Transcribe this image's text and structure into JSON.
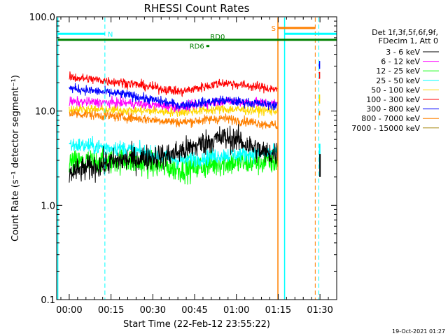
{
  "chart_data": {
    "type": "line",
    "title": "RHESSI Count Rates",
    "xlabel": "Start Time (22-Feb-12 23:55:22)",
    "ylabel": "Count Rate (s⁻¹ detector segment⁻¹)",
    "y_scale": "log",
    "ylim": [
      0.1,
      100.0
    ],
    "y_tick_labels": [
      "0.1",
      "1.0",
      "10.0",
      "100.0"
    ],
    "xlim_minutes": [
      -4.5,
      96
    ],
    "x_tick_labels": [
      "00:00",
      "00:15",
      "00:30",
      "00:45",
      "01:00",
      "01:15",
      "01:30"
    ],
    "legend_placement": "right",
    "legend_header": [
      "Det 1f,3f,5f,6f,9f,",
      "FDecim 1, Att 0"
    ],
    "series": [
      {
        "name": "3 - 6 keV",
        "color": "#000000",
        "data_end_min": 74.8,
        "gaps": [
          [
            0,
            4
          ]
        ],
        "segments": [
          [
            0,
            2.2
          ],
          [
            18,
            3.0
          ],
          [
            36,
            3.4
          ],
          [
            45,
            4.2
          ],
          [
            50,
            4.8
          ],
          [
            55,
            5.2
          ],
          [
            60,
            5.0
          ],
          [
            70,
            3.6
          ],
          [
            74.8,
            3.5
          ]
        ]
      },
      {
        "name": "6 - 12 keV",
        "color": "#ff00ff",
        "data_end_min": 74.8,
        "segments": [
          [
            0,
            12.5
          ],
          [
            20,
            12.2
          ],
          [
            40,
            11.0
          ],
          [
            55,
            12.8
          ],
          [
            74.8,
            12.0
          ]
        ]
      },
      {
        "name": "12 - 25 keV",
        "color": "#00ff00",
        "data_end_min": 74.8,
        "segments": [
          [
            0,
            2.8
          ],
          [
            20,
            3.0
          ],
          [
            40,
            2.4
          ],
          [
            55,
            2.8
          ],
          [
            74.8,
            2.9
          ]
        ]
      },
      {
        "name": "25 - 50 keV",
        "color": "#00ffff",
        "data_end_min": 74.8,
        "segments": [
          [
            0,
            4.4
          ],
          [
            20,
            4.0
          ],
          [
            40,
            3.0
          ],
          [
            55,
            3.4
          ],
          [
            74.8,
            3.6
          ]
        ]
      },
      {
        "name": "50 - 100 keV",
        "color": "#ffd700",
        "data_end_min": 74.8,
        "segments": [
          [
            0,
            10.5
          ],
          [
            20,
            10.2
          ],
          [
            40,
            9.8
          ],
          [
            55,
            10.5
          ],
          [
            74.8,
            10.0
          ]
        ]
      },
      {
        "name": "100 - 300 keV",
        "color": "#ff0000",
        "data_end_min": 74.8,
        "segments": [
          [
            0,
            23
          ],
          [
            20,
            20
          ],
          [
            40,
            16
          ],
          [
            55,
            20
          ],
          [
            74.8,
            17
          ]
        ]
      },
      {
        "name": "300 - 800 keV",
        "color": "#0000ff",
        "data_end_min": 74.8,
        "segments": [
          [
            0,
            17.5
          ],
          [
            20,
            15
          ],
          [
            40,
            11.5
          ],
          [
            55,
            13
          ],
          [
            74.8,
            11.5
          ]
        ]
      },
      {
        "name": "800 - 7000 keV",
        "color": "#ff8000",
        "data_end_min": 74.8,
        "segments": [
          [
            0,
            9.5
          ],
          [
            20,
            8.6
          ],
          [
            40,
            7.6
          ],
          [
            55,
            8.4
          ],
          [
            74.8,
            7.0
          ]
        ]
      },
      {
        "name": "7000 - 15000 keV",
        "color": "#a08000",
        "data_end_min": 74.8,
        "segments": [
          [
            0,
            9.5
          ],
          [
            74.8,
            9.0
          ]
        ]
      }
    ],
    "vertical_lines": [
      {
        "x_min": 12.8,
        "color": "#00ffff",
        "style": "dashed"
      },
      {
        "x_min": 74.9,
        "color": "#ff8000",
        "style": "solid"
      },
      {
        "x_min": 77.3,
        "color": "#00ffff",
        "style": "solid"
      },
      {
        "x_min": 88.3,
        "color": "#ff8000",
        "style": "dashed"
      },
      {
        "x_min": 89.6,
        "color": "#00ffff",
        "style": "dashed"
      },
      {
        "x_min": -4.1,
        "color": "#00ffff",
        "style": "solid"
      }
    ],
    "flag_bars": [
      {
        "label": "N",
        "color": "#00ffff",
        "x_range": [
          -4.1,
          12.8
        ],
        "y": 66
      },
      {
        "label": "RD0",
        "color": "#008000",
        "x_range": [
          -4.1,
          96
        ],
        "y": 57
      },
      {
        "label": "RD6",
        "color": "#008000",
        "x_range": [
          49.2,
          50.3
        ],
        "y": 49
      },
      {
        "label": "S",
        "color": "#ff8000",
        "x_range": [
          74.9,
          88.3
        ],
        "y": 76
      },
      {
        "label": "",
        "color": "#00ffff",
        "x_range": [
          77.3,
          96
        ],
        "y": 66
      }
    ]
  },
  "footer": {
    "timestamp": "19-Oct-2021 01:27"
  }
}
